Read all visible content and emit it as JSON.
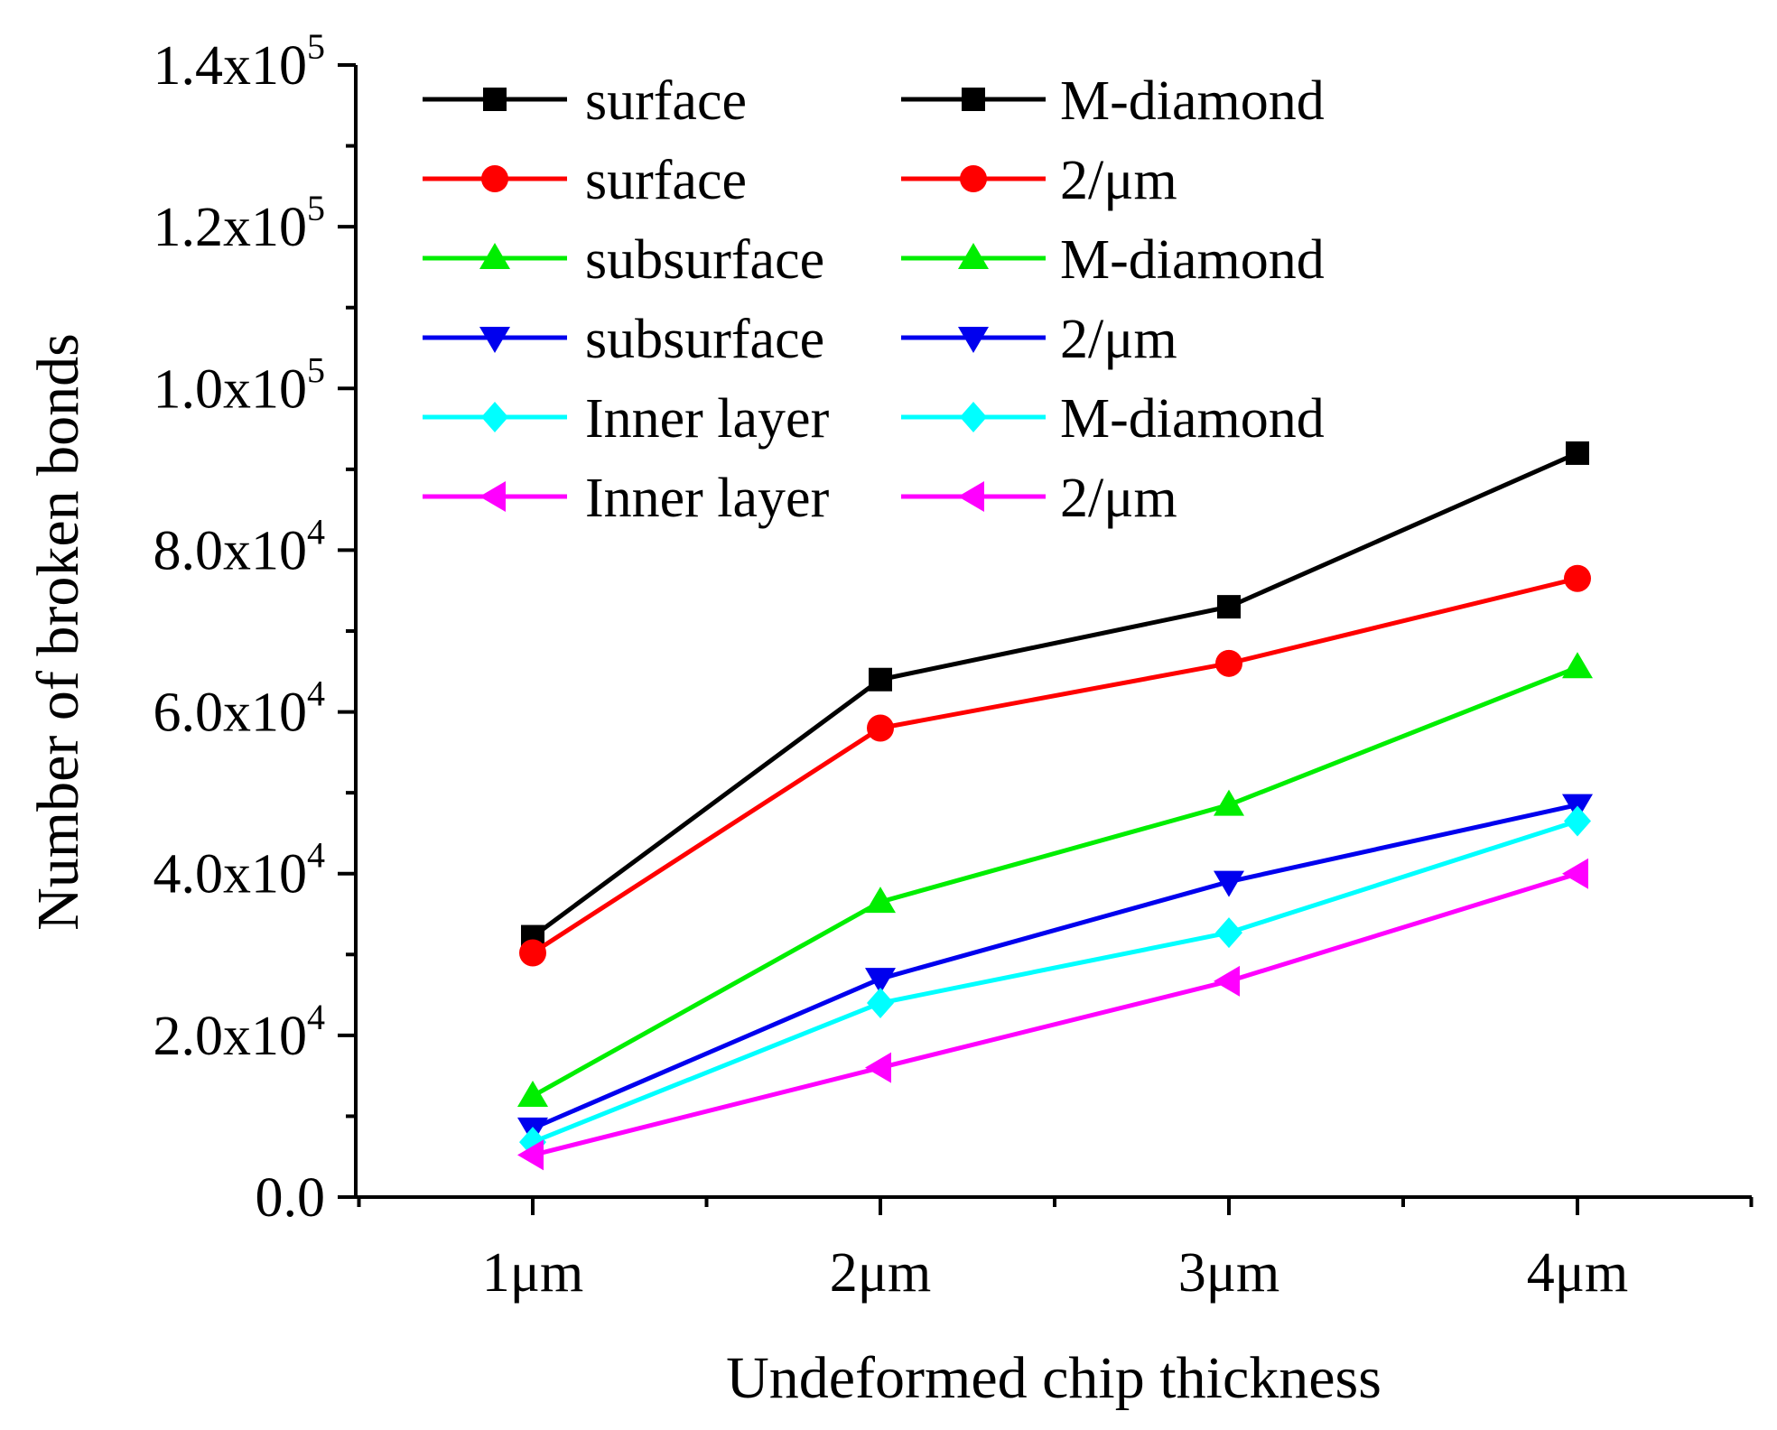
{
  "chart_data": {
    "type": "line",
    "categories": [
      "1μm",
      "2μm",
      "3μm",
      "4μm"
    ],
    "xlabel": "Undeformed chip thickness",
    "ylabel": "Number of broken bonds",
    "ylim": [
      0,
      140000
    ],
    "yticks": [
      {
        "value": 0,
        "mantissa": "0.0",
        "exponent": ""
      },
      {
        "value": 20000,
        "mantissa": "2.0x10",
        "exponent": "4"
      },
      {
        "value": 40000,
        "mantissa": "4.0x10",
        "exponent": "4"
      },
      {
        "value": 60000,
        "mantissa": "6.0x10",
        "exponent": "4"
      },
      {
        "value": 80000,
        "mantissa": "8.0x10",
        "exponent": "4"
      },
      {
        "value": 100000,
        "mantissa": "1.0x10",
        "exponent": "5"
      },
      {
        "value": 120000,
        "mantissa": "1.2x10",
        "exponent": "5"
      },
      {
        "value": 140000,
        "mantissa": "1.4x10",
        "exponent": "5"
      }
    ],
    "legend_position": "top-left",
    "series": [
      {
        "label_1": "surface",
        "label_2": "M-diamond",
        "color": "#000000",
        "marker": "square",
        "values": [
          32200,
          64000,
          73000,
          92000
        ]
      },
      {
        "label_1": "surface",
        "label_2": "2/μm",
        "color": "#ff0000",
        "marker": "circle",
        "values": [
          30200,
          58000,
          66000,
          76500
        ]
      },
      {
        "label_1": "subsurface",
        "label_2": "M-diamond",
        "color": "#00ee00",
        "marker": "triangle-up",
        "values": [
          12500,
          36500,
          48500,
          65500
        ]
      },
      {
        "label_1": "subsurface",
        "label_2": "2/μm",
        "color": "#0000ee",
        "marker": "triangle-down",
        "values": [
          8500,
          27000,
          39000,
          48500
        ]
      },
      {
        "label_1": "Inner layer",
        "label_2": "M-diamond",
        "color": "#00ffff",
        "marker": "diamond",
        "values": [
          6800,
          24000,
          32700,
          46500
        ]
      },
      {
        "label_1": "Inner layer",
        "label_2": "2/μm",
        "color": "#ff00ff",
        "marker": "triangle-left",
        "values": [
          5200,
          16000,
          26700,
          40000
        ]
      }
    ]
  }
}
